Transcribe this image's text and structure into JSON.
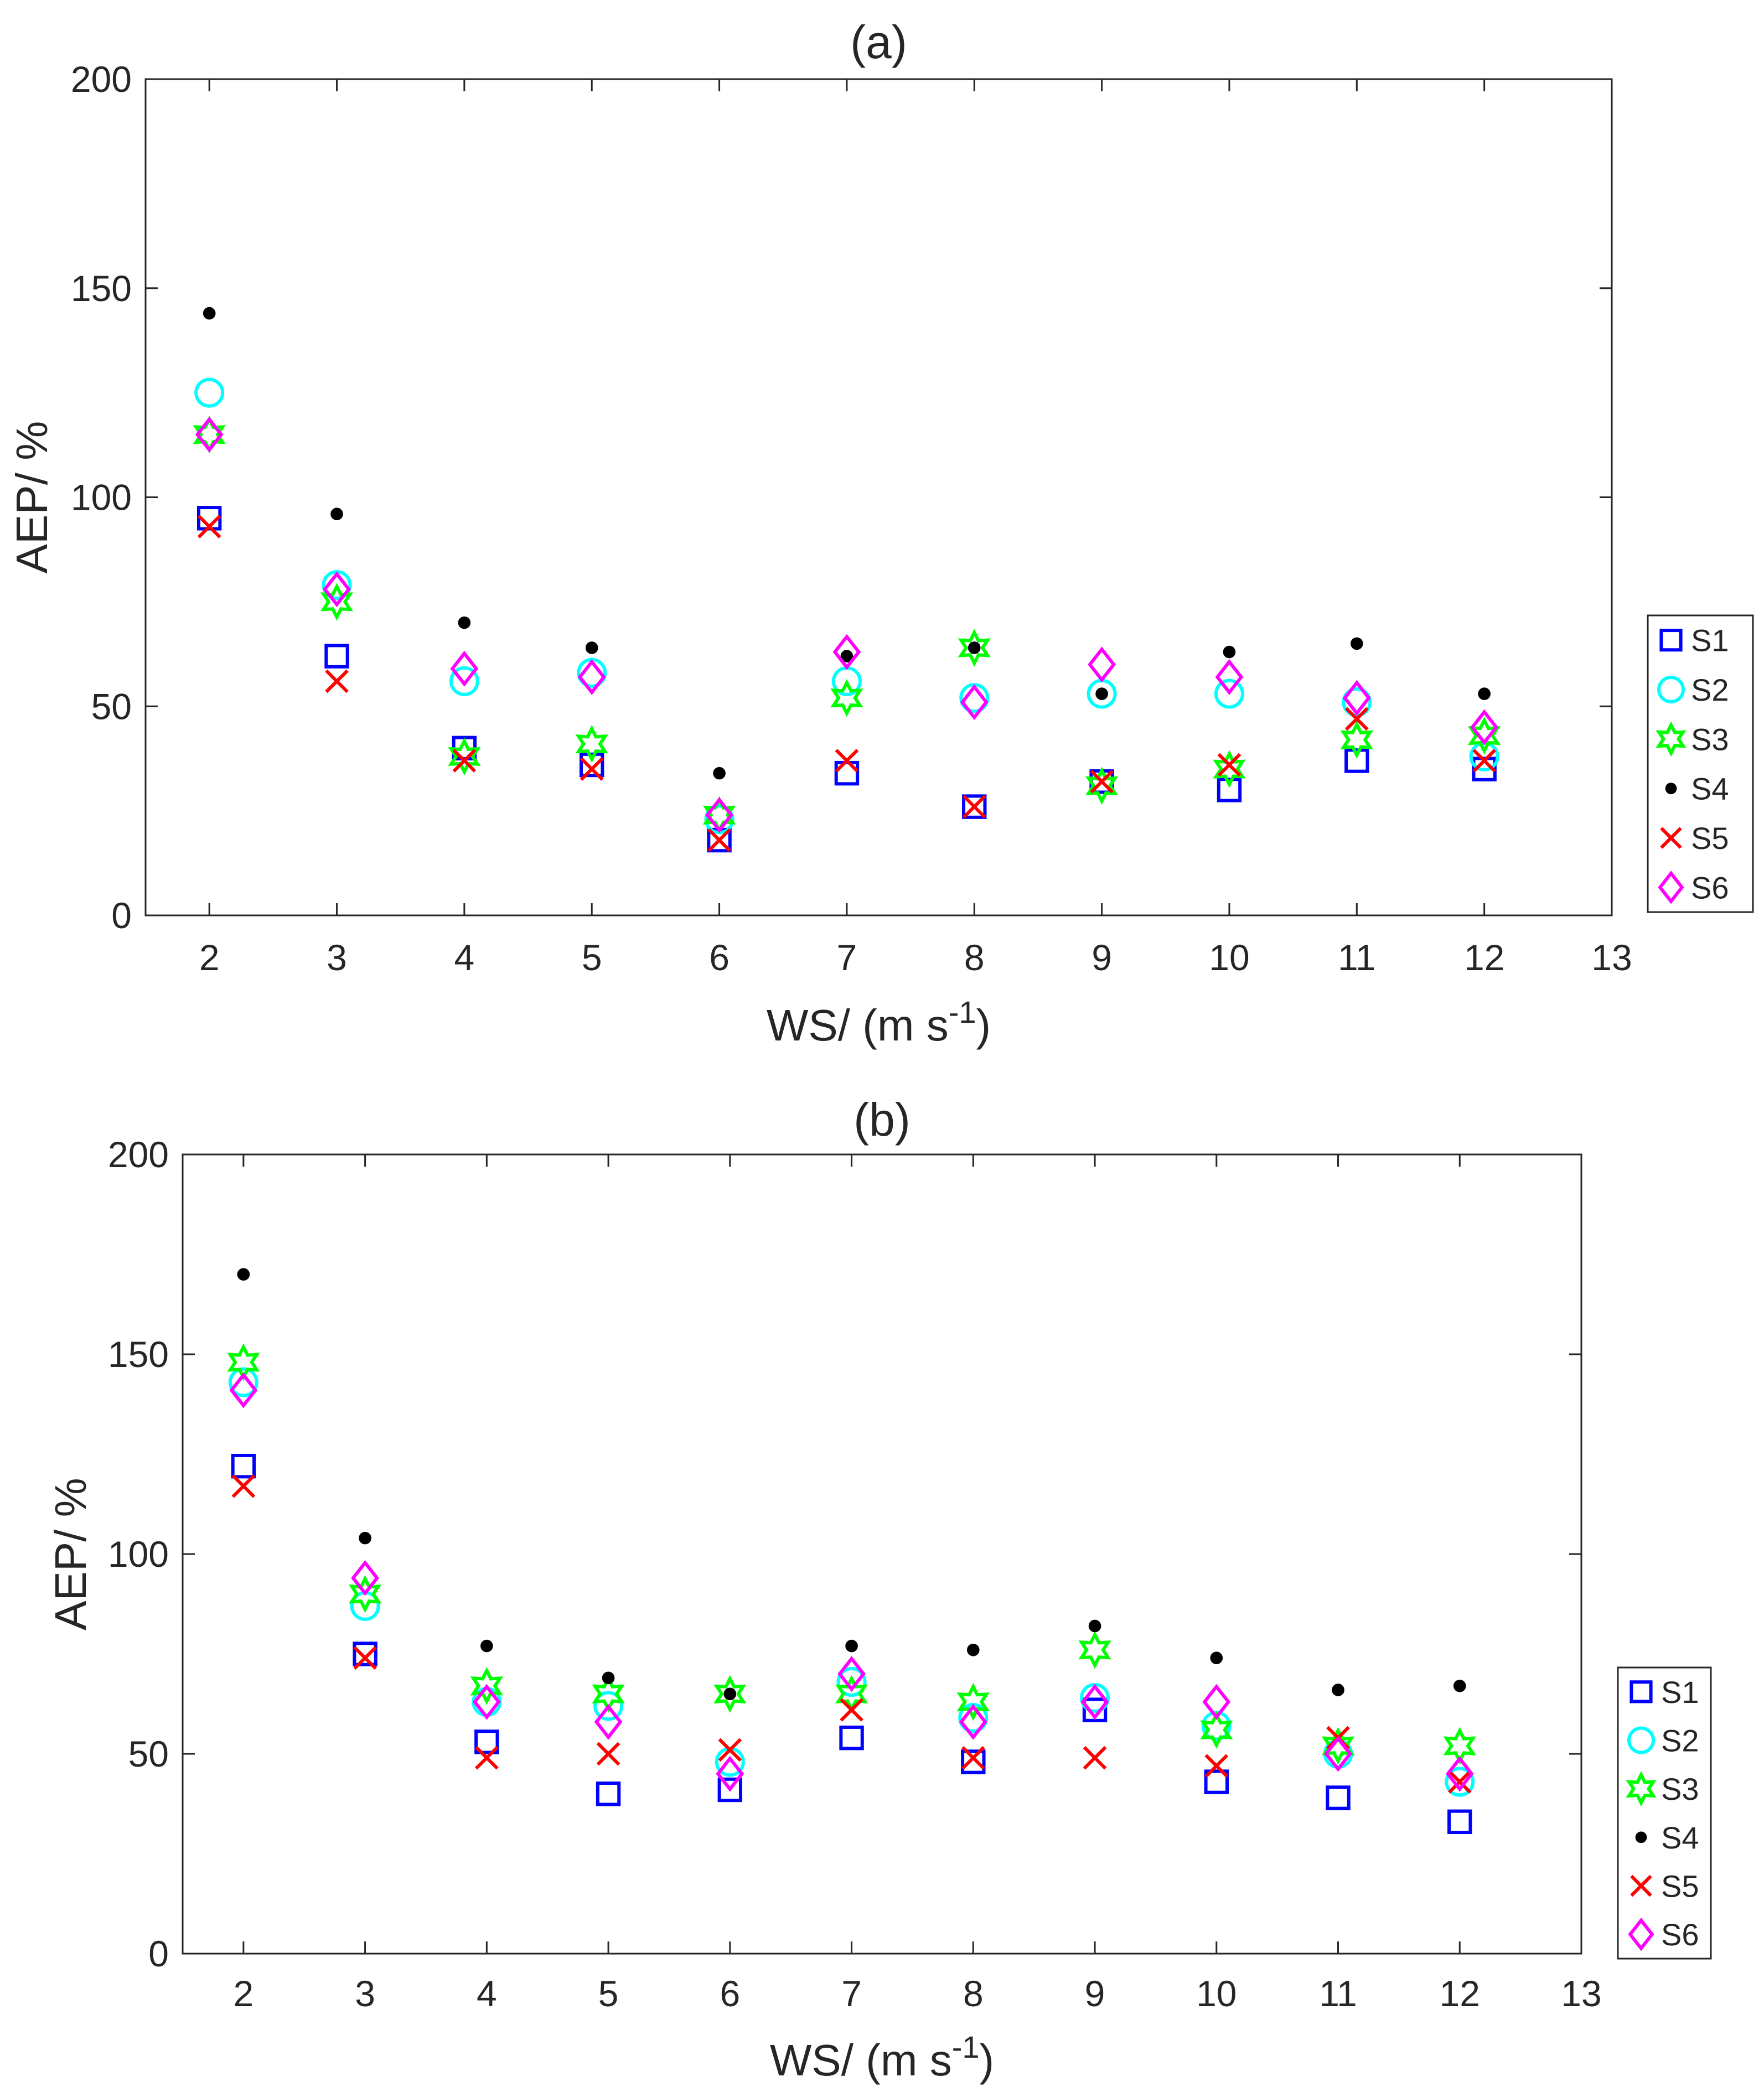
{
  "chart_data": [
    {
      "type": "scatter",
      "title": "(a)",
      "xlabel": "WS/ (m s",
      "xlabel_sup": "-1",
      "xlabel_end": ")",
      "ylabel": "AEP/ %",
      "xlim": [
        1.5,
        13
      ],
      "ylim": [
        0,
        200
      ],
      "xticks": [
        2,
        3,
        4,
        5,
        6,
        7,
        8,
        9,
        10,
        11,
        12,
        13
      ],
      "yticks": [
        0,
        50,
        100,
        150,
        200
      ],
      "legend_position": "right",
      "x": [
        2,
        3,
        4,
        5,
        6,
        7,
        8,
        9,
        10,
        11,
        12
      ],
      "series": [
        {
          "name": "S1",
          "marker": "square",
          "color": "#0000ff",
          "values": [
            95,
            62,
            40,
            36,
            18,
            34,
            26,
            32,
            30,
            37,
            35
          ]
        },
        {
          "name": "S2",
          "marker": "circle",
          "color": "#00ffff",
          "values": [
            125,
            79,
            56,
            58,
            23,
            56,
            52,
            53,
            53,
            51,
            38
          ]
        },
        {
          "name": "S3",
          "marker": "hexagram",
          "color": "#00ff00",
          "values": [
            115,
            75,
            38,
            41,
            24,
            52,
            64,
            31,
            35,
            42,
            43
          ]
        },
        {
          "name": "S4",
          "marker": "dot",
          "color": "#000000",
          "values": [
            144,
            96,
            70,
            64,
            34,
            62,
            64,
            53,
            63,
            65,
            53
          ]
        },
        {
          "name": "S5",
          "marker": "x",
          "color": "#ff0000",
          "values": [
            93,
            56,
            37,
            35,
            18,
            37,
            26,
            32,
            36,
            47,
            37
          ]
        },
        {
          "name": "S6",
          "marker": "diamond",
          "color": "#ff00ff",
          "values": [
            115,
            78,
            59,
            57,
            24,
            63,
            51,
            60,
            57,
            52,
            45
          ]
        }
      ]
    },
    {
      "type": "scatter",
      "title": "(b)",
      "xlabel": "WS/ (m s",
      "xlabel_sup": "-1",
      "xlabel_end": ")",
      "ylabel": "AEP/ %",
      "xlim": [
        1.5,
        13
      ],
      "ylim": [
        0,
        200
      ],
      "xticks": [
        2,
        3,
        4,
        5,
        6,
        7,
        8,
        9,
        10,
        11,
        12,
        13
      ],
      "yticks": [
        0,
        50,
        100,
        150,
        200
      ],
      "legend_position": "right",
      "x": [
        2,
        3,
        4,
        5,
        6,
        7,
        8,
        9,
        10,
        11,
        12
      ],
      "series": [
        {
          "name": "S1",
          "marker": "square",
          "color": "#0000ff",
          "values": [
            122,
            75,
            53,
            40,
            41,
            54,
            48,
            61,
            43,
            39,
            33
          ]
        },
        {
          "name": "S2",
          "marker": "circle",
          "color": "#00ffff",
          "values": [
            143,
            87,
            63,
            62,
            48,
            68,
            59,
            64,
            57,
            50,
            43
          ]
        },
        {
          "name": "S3",
          "marker": "hexagram",
          "color": "#00ff00",
          "values": [
            148,
            90,
            67,
            65,
            65,
            65,
            63,
            76,
            56,
            52,
            52
          ]
        },
        {
          "name": "S4",
          "marker": "dot",
          "color": "#000000",
          "values": [
            170,
            104,
            77,
            69,
            65,
            77,
            76,
            82,
            74,
            66,
            67
          ]
        },
        {
          "name": "S5",
          "marker": "x",
          "color": "#ff0000",
          "values": [
            117,
            74,
            49,
            50,
            51,
            61,
            49,
            49,
            47,
            54,
            43
          ]
        },
        {
          "name": "S6",
          "marker": "diamond",
          "color": "#ff00ff",
          "values": [
            141,
            94,
            63,
            58,
            45,
            70,
            58,
            63,
            63,
            50,
            45
          ]
        }
      ]
    }
  ]
}
